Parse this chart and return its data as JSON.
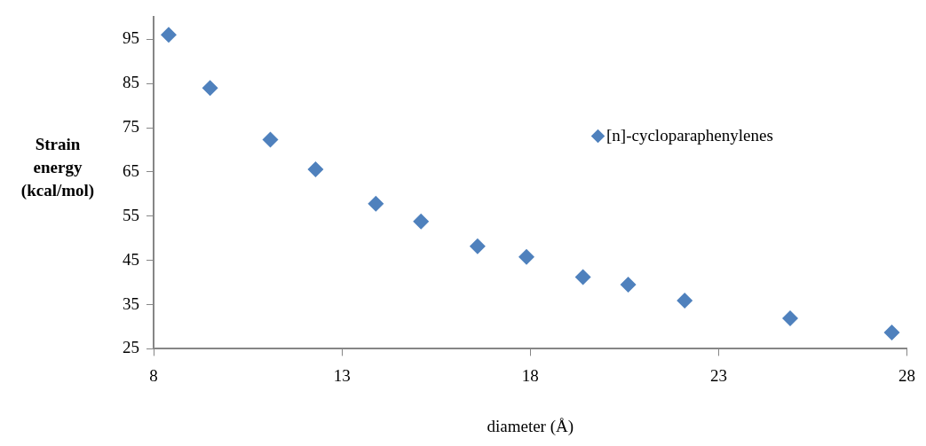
{
  "chart_data": {
    "type": "scatter",
    "xlabel": "diameter (Å)",
    "ylabel": "Strain energy (kcal/mol)",
    "series": [
      {
        "name": "[n]-cycloparaphenylenes",
        "color": "#4f81bd",
        "x": [
          8.4,
          9.5,
          11.1,
          12.3,
          13.9,
          15.1,
          16.6,
          17.9,
          19.4,
          20.6,
          22.1,
          24.9,
          27.6
        ],
        "values": [
          96,
          84,
          72.3,
          65.6,
          57.8,
          53.8,
          48.2,
          45.8,
          41.2,
          39.5,
          35.9,
          31.9,
          28.7
        ]
      }
    ],
    "xlim": [
      8,
      28
    ],
    "xticks": [
      8,
      13,
      18,
      23,
      28
    ],
    "ylim": [
      25,
      100
    ],
    "yticks": [
      25,
      35,
      45,
      55,
      65,
      75,
      85,
      95
    ],
    "marker": "diamond",
    "legend": "top right",
    "grid": false
  }
}
